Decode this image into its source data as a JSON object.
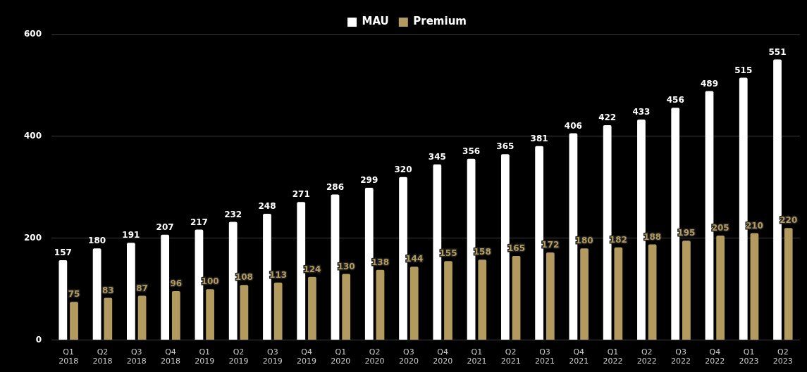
{
  "chart_data": {
    "type": "bar",
    "categories": [
      "Q1 2018",
      "Q2 2018",
      "Q3 2018",
      "Q4 2018",
      "Q1 2019",
      "Q2 2019",
      "Q3 2019",
      "Q4 2019",
      "Q1 2020",
      "Q2 2020",
      "Q3 2020",
      "Q4 2020",
      "Q1 2021",
      "Q2 2021",
      "Q3 2021",
      "Q4 2021",
      "Q1 2022",
      "Q2 2022",
      "Q3 2022",
      "Q4 2022",
      "Q1 2023",
      "Q2 2023"
    ],
    "series": [
      {
        "name": "MAU",
        "color": "#ffffff",
        "values": [
          157,
          180,
          191,
          207,
          217,
          232,
          248,
          271,
          286,
          299,
          320,
          345,
          356,
          365,
          381,
          406,
          422,
          433,
          456,
          489,
          515,
          551
        ]
      },
      {
        "name": "Premium",
        "color": "#b39a5f",
        "values": [
          75,
          83,
          87,
          96,
          100,
          108,
          113,
          124,
          130,
          138,
          144,
          155,
          158,
          165,
          172,
          180,
          182,
          188,
          195,
          205,
          210,
          220
        ]
      }
    ],
    "ylim": [
      0,
      600
    ],
    "yticks": [
      0,
      200,
      400,
      600
    ],
    "grid": "y",
    "legend": "top",
    "data_labels": true
  }
}
